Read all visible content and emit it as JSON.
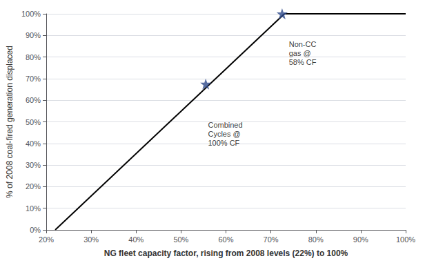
{
  "chart_data": {
    "type": "line",
    "xlabel": "NG fleet capacity factor, rising from 2008 levels (22%) to 100%",
    "ylabel": "% of 2008 coal-fired generation displaced",
    "series": [
      {
        "type": "line",
        "color": "#000000",
        "x": [
          0.22,
          0.73
        ],
        "values": [
          0.0,
          1.0
        ]
      },
      {
        "type": "line",
        "color": "#000000",
        "x": [
          0.73,
          1.0
        ],
        "values": [
          1.0,
          1.0
        ]
      },
      {
        "type": "scatter",
        "marker": "star",
        "color": "#2E4A8B",
        "x": [
          0.555,
          0.725
        ],
        "values": [
          0.675,
          1.0
        ]
      }
    ],
    "annotations": [
      {
        "text": "Combined\nCycles @\n100% CF",
        "x": 0.56,
        "y": 0.505
      },
      {
        "text": "Non-CC\ngas @\n58% CF",
        "x": 0.74,
        "y": 0.88
      }
    ],
    "xlim": [
      0.2,
      1.0
    ],
    "ylim": [
      0.0,
      1.0
    ],
    "xticks": [
      {
        "value": 0.2,
        "label": "20%"
      },
      {
        "value": 0.3,
        "label": "30%"
      },
      {
        "value": 0.4,
        "label": "40%"
      },
      {
        "value": 0.5,
        "label": "50%"
      },
      {
        "value": 0.6,
        "label": "60%"
      },
      {
        "value": 0.7,
        "label": "70%"
      },
      {
        "value": 0.8,
        "label": "80%"
      },
      {
        "value": 0.9,
        "label": "90%"
      },
      {
        "value": 1.0,
        "label": "100%"
      }
    ],
    "yticks": [
      {
        "value": 0.0,
        "label": "0%"
      },
      {
        "value": 0.1,
        "label": "10%"
      },
      {
        "value": 0.2,
        "label": "20%"
      },
      {
        "value": 0.3,
        "label": "30%"
      },
      {
        "value": 0.4,
        "label": "40%"
      },
      {
        "value": 0.5,
        "label": "50%"
      },
      {
        "value": 0.6,
        "label": "60%"
      },
      {
        "value": 0.7,
        "label": "70%"
      },
      {
        "value": 0.8,
        "label": "80%"
      },
      {
        "value": 0.9,
        "label": "90%"
      },
      {
        "value": 1.0,
        "label": "100%"
      }
    ],
    "grid": true
  }
}
